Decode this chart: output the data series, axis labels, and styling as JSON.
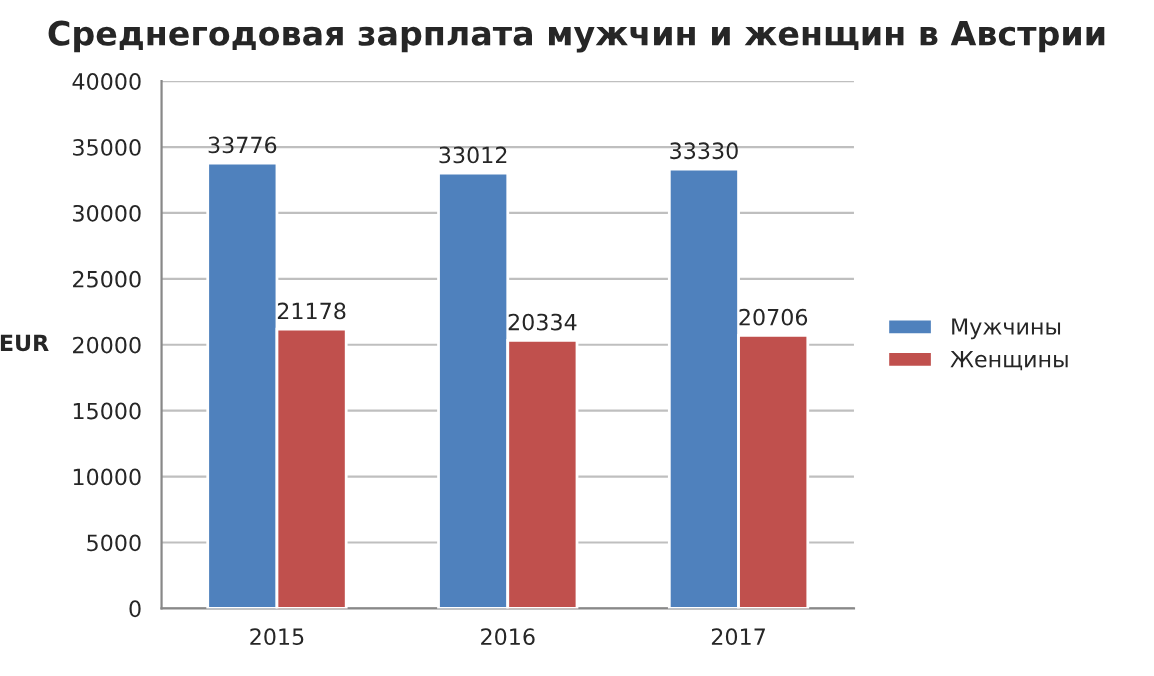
{
  "chart_data": {
    "type": "bar",
    "title": "Среднегодовая зарплата мужчин и женщин в Австрии",
    "ylabel": "EUR",
    "categories": [
      "2015",
      "2016",
      "2017"
    ],
    "series": [
      {
        "name": "Мужчины",
        "color": "#4f81bd",
        "values": [
          33776,
          33012,
          33330
        ]
      },
      {
        "name": "Женщины",
        "color": "#c0504d",
        "values": [
          21178,
          20334,
          20706
        ]
      }
    ],
    "ylim": [
      0,
      40000
    ],
    "yticks": [
      0,
      5000,
      10000,
      15000,
      20000,
      25000,
      30000,
      35000,
      40000
    ],
    "grid": "y",
    "legend": "right",
    "data_labels": true
  }
}
